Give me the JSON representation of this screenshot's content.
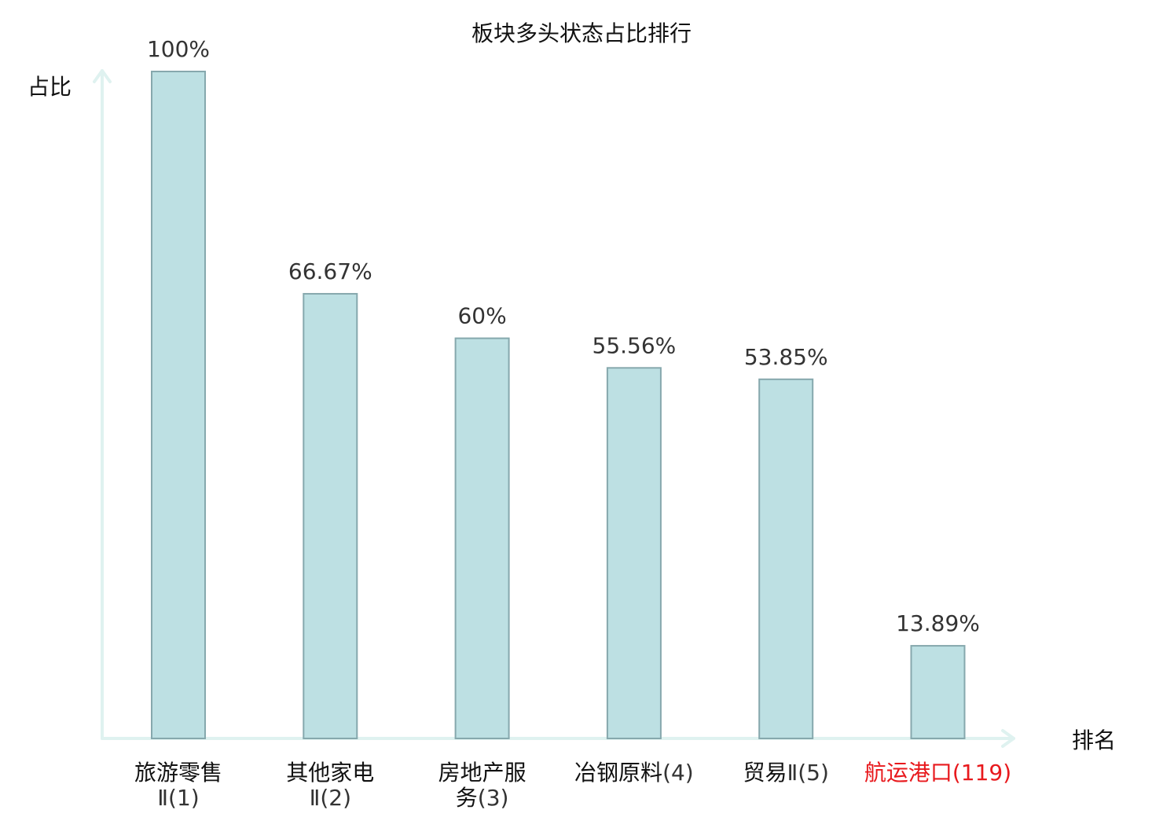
{
  "chart_data": {
    "type": "bar",
    "title": "板块多头状态占比排行",
    "ylabel": "占比",
    "xlabel": "排名",
    "ylim": [
      0,
      100
    ],
    "grid": false,
    "bar_color": "#bde0e3",
    "bar_edge_color": "#86a8ad",
    "axis_color": "#dff2f0",
    "highlight_color": "#e8191d",
    "categories": [
      {
        "name": "旅游零售",
        "rank": "Ⅱ(1)",
        "lines": [
          "旅游零售",
          "Ⅱ(1)"
        ],
        "highlight": false
      },
      {
        "name": "其他家电",
        "rank": "Ⅱ(2)",
        "lines": [
          "其他家电",
          "Ⅱ(2)"
        ],
        "highlight": false
      },
      {
        "name": "房地产服务",
        "rank": "(3)",
        "lines": [
          "房地产服",
          "务(3)"
        ],
        "highlight": false
      },
      {
        "name": "冶钢原料",
        "rank": "(4)",
        "lines": [
          "冶钢原料(4)"
        ],
        "highlight": false
      },
      {
        "name": "贸易",
        "rank": "Ⅱ(5)",
        "lines": [
          "贸易Ⅱ(5)"
        ],
        "highlight": false
      },
      {
        "name": "航运港口",
        "rank": "(119)",
        "lines": [
          "航运港口(119)"
        ],
        "highlight": true
      }
    ],
    "values": [
      100,
      66.67,
      60,
      55.56,
      53.85,
      13.89
    ],
    "value_labels": [
      "100%",
      "66.67%",
      "60%",
      "55.56%",
      "53.85%",
      "13.89%"
    ]
  }
}
